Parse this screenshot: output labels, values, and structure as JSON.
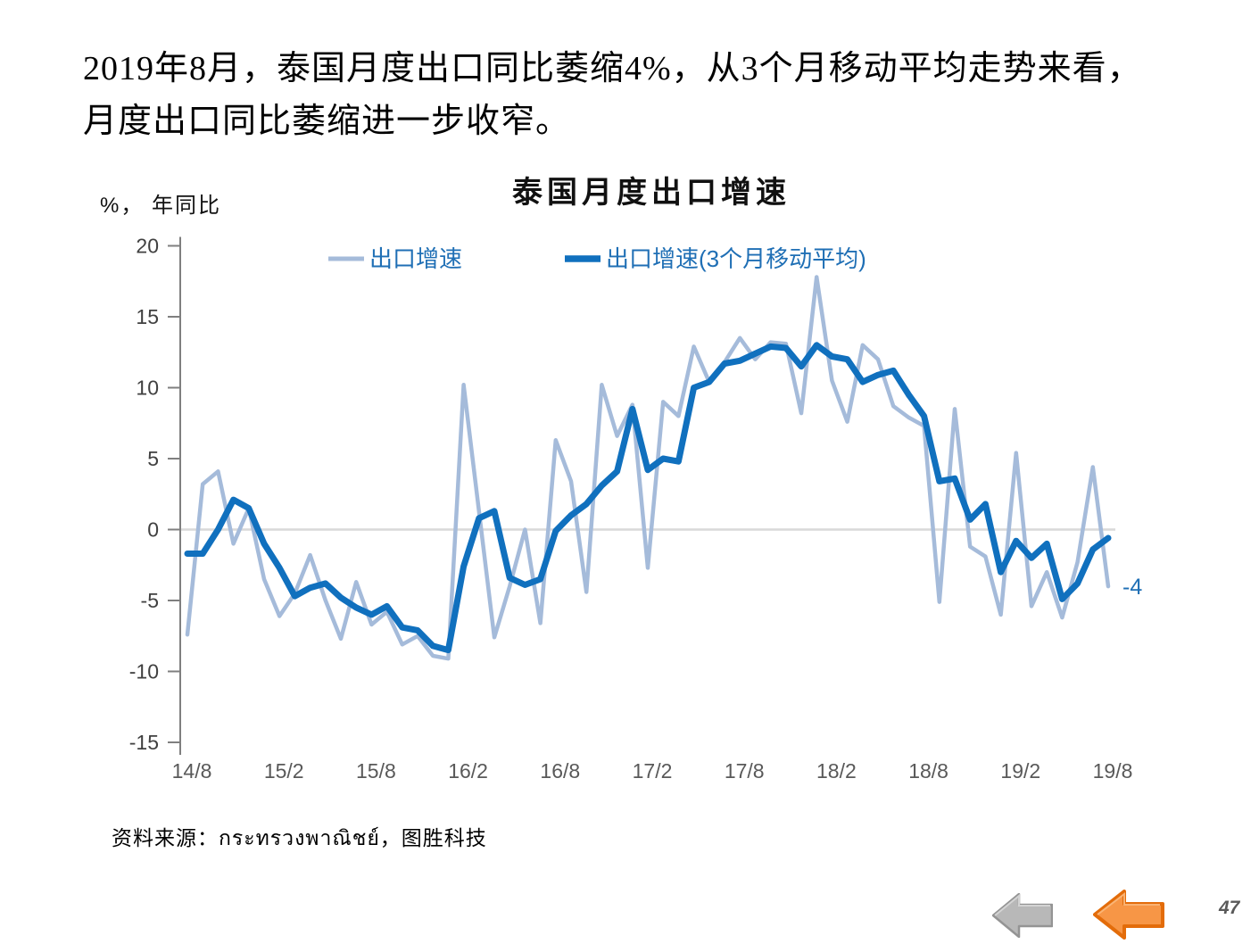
{
  "page": {
    "intro_lines": [
      "2019年8月，泰国月度出口同比萎缩4%，从3个月移动平均走势来看，",
      "月度出口同比萎缩进一步收窄。"
    ],
    "source_text": "资料来源：กระทรวงพาณิชย์，图胜科技",
    "page_number": "47"
  },
  "chart": {
    "title": "泰国月度出口增速",
    "unit_label": "%， 年同比",
    "annotation_label": "-4",
    "colors": {
      "series_light": "#A5BBDA",
      "series_dark": "#1070BE",
      "legend_text": "#1F6FB5",
      "axis": "#7F7F7F",
      "gridline": "#D9D9D9",
      "y_tick_text": "#404040",
      "x_tick_text": "#595959",
      "arrow_gray_fill": "#B8B8B8",
      "arrow_gray_edge": "#949494",
      "arrow_orange_fill": "#F79646",
      "arrow_orange_edge": "#E36C0A"
    }
  },
  "chart_data": {
    "type": "line",
    "title": "泰国月度出口增速",
    "unit_label": "%， 年同比",
    "xlabel": "",
    "ylabel": "%, YoY",
    "ylim": [
      -15,
      20
    ],
    "ytick_step": 5,
    "x_tick_step": 6,
    "gridlines": "zero-line-only",
    "legend_position": "top-inside",
    "x": [
      "14/8",
      "14/9",
      "14/10",
      "14/11",
      "14/12",
      "15/1",
      "15/2",
      "15/3",
      "15/4",
      "15/5",
      "15/6",
      "15/7",
      "15/8",
      "15/9",
      "15/10",
      "15/11",
      "15/12",
      "16/1",
      "16/2",
      "16/3",
      "16/4",
      "16/5",
      "16/6",
      "16/7",
      "16/8",
      "16/9",
      "16/10",
      "16/11",
      "16/12",
      "17/1",
      "17/2",
      "17/3",
      "17/4",
      "17/5",
      "17/6",
      "17/7",
      "17/8",
      "17/9",
      "17/10",
      "17/11",
      "17/12",
      "18/1",
      "18/2",
      "18/3",
      "18/4",
      "18/5",
      "18/6",
      "18/7",
      "18/8",
      "18/9",
      "18/10",
      "18/11",
      "18/12",
      "19/1",
      "19/2",
      "19/3",
      "19/4",
      "19/5",
      "19/6",
      "19/7",
      "19/8"
    ],
    "x_tick_labels": [
      "14/8",
      "15/2",
      "15/8",
      "16/2",
      "16/8",
      "17/2",
      "17/8",
      "18/2",
      "18/8",
      "19/2",
      "19/8"
    ],
    "series": [
      {
        "name": "出口增速",
        "color": "#A5BBDA",
        "stroke_width": 4.5,
        "values": [
          -7.4,
          3.2,
          4.1,
          -1.0,
          1.5,
          -3.5,
          -6.1,
          -4.5,
          -1.8,
          -5.0,
          -7.7,
          -3.7,
          -6.7,
          -5.8,
          -8.1,
          -7.5,
          -8.9,
          -9.1,
          10.2,
          1.3,
          -7.6,
          -4.0,
          0.0,
          -6.6,
          6.3,
          3.4,
          -4.4,
          10.2,
          6.6,
          8.8,
          -2.7,
          9.0,
          8.0,
          12.9,
          10.4,
          11.8,
          13.5,
          12.0,
          13.2,
          13.1,
          8.2,
          17.8,
          10.5,
          7.6,
          13.0,
          12.0,
          8.7,
          7.9,
          7.3,
          -5.1,
          8.5,
          -1.2,
          -1.9,
          -6.0,
          5.4,
          -5.4,
          -3.0,
          -6.2,
          -2.3,
          4.4,
          -4.0
        ]
      },
      {
        "name": "出口增速(3个月移动平均)",
        "color": "#1070BE",
        "stroke_width": 7,
        "values": [
          -1.7,
          -1.7,
          0.0,
          2.1,
          1.5,
          -1.0,
          -2.7,
          -4.7,
          -4.1,
          -3.8,
          -4.8,
          -5.5,
          -6.0,
          -5.4,
          -6.9,
          -7.1,
          -8.2,
          -8.5,
          -2.6,
          0.8,
          1.3,
          -3.4,
          -3.9,
          -3.5,
          -0.1,
          1.0,
          1.8,
          3.1,
          4.1,
          8.5,
          4.2,
          5.0,
          4.8,
          10.0,
          10.4,
          11.7,
          11.9,
          12.4,
          12.9,
          12.8,
          11.5,
          13.0,
          12.2,
          12.0,
          10.4,
          10.9,
          11.2,
          9.5,
          8.0,
          3.4,
          3.6,
          0.7,
          1.8,
          -3.0,
          -0.8,
          -2.0,
          -1.0,
          -4.9,
          -3.8,
          -1.4,
          -0.6
        ]
      }
    ],
    "annotation": {
      "text": "-4",
      "x": "19/8",
      "y": -4,
      "color": "#1F6FB5"
    }
  }
}
